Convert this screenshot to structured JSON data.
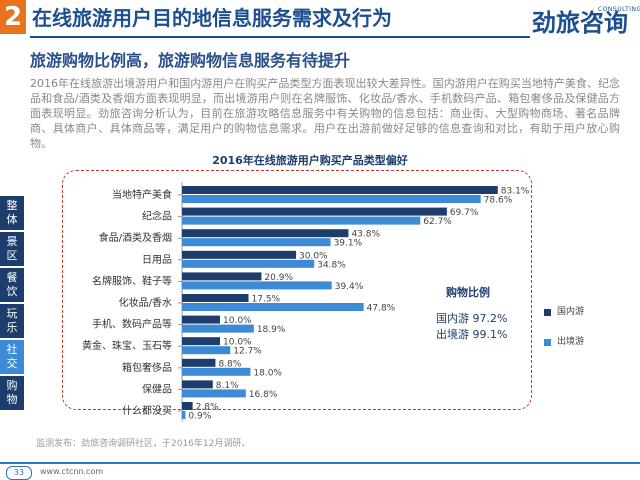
{
  "header": {
    "page_number": "2",
    "title": "在线旅游用户目的地信息服务需求及行为",
    "logo": {
      "name_cn": "劲旅咨询",
      "name_en": "CONSULTING"
    }
  },
  "section": {
    "subtitle": "旅游购物比例高，旅游购物信息服务有待提升",
    "body": "2016年在线旅游出境游用户和国内游用户在购买产品类型方面表现出较大差异性。国内游用户在购买当地特产美食、纪念品和食品/酒类及香烟方面表现明显，而出境游用户则在名牌服饰、化妆品/香水、手机数码产品、箱包奢侈品及保健品方面表现明显。劲旅咨询分析认为，目前在旅游攻略信息服务中有关购物的信息包括：商业街、大型购物商场、著名品牌商、具体商户、具体商品等，满足用户的购物信息需求。用户在出游前做好足够的信息查询和对比，有助于用户放心购物。"
  },
  "side_nav": [
    {
      "label": "整体",
      "color": "#1d3e6c"
    },
    {
      "label": "景区",
      "color": "#1d3e6c"
    },
    {
      "label": "餐饮",
      "color": "#1d3e6c"
    },
    {
      "label": "玩乐",
      "color": "#1d3e6c"
    },
    {
      "label": "社交",
      "color": "#3d8bd6"
    },
    {
      "label": "购物",
      "color": "#1d3e6c"
    }
  ],
  "purchase_ratio": {
    "title": "购物比例",
    "domestic": "国内游 97.2%",
    "outbound": "出境游 99.1%"
  },
  "chart_data": {
    "type": "bar",
    "orientation": "horizontal",
    "title": "2016年在线旅游用户购买产品类型偏好",
    "categories": [
      "当地特产美食",
      "纪念品",
      "食品/酒类及香烟",
      "日用品",
      "名牌服饰、鞋子等",
      "化妆品/香水",
      "手机、数码产品等",
      "黄金、珠宝、玉石等",
      "箱包奢侈品",
      "保健品",
      "什么都没买"
    ],
    "series": [
      {
        "name": "国内游",
        "color": "#1d3e6c",
        "values": [
          83.1,
          69.7,
          43.8,
          30.0,
          20.9,
          17.5,
          10.0,
          10.0,
          8.8,
          8.1,
          2.8
        ]
      },
      {
        "name": "出境游",
        "color": "#3d8bd6",
        "values": [
          78.6,
          62.7,
          39.1,
          34.8,
          39.4,
          47.8,
          18.9,
          12.7,
          18.0,
          16.8,
          0.9
        ]
      }
    ],
    "value_suffix": "%",
    "xlim": [
      0,
      100
    ],
    "grid": false,
    "legend_position": "right"
  },
  "footer": {
    "source": "监测发布：劲旅咨询调研社区，于2016年12月调研。",
    "page": "33",
    "url": "www.ctcnn.com"
  }
}
